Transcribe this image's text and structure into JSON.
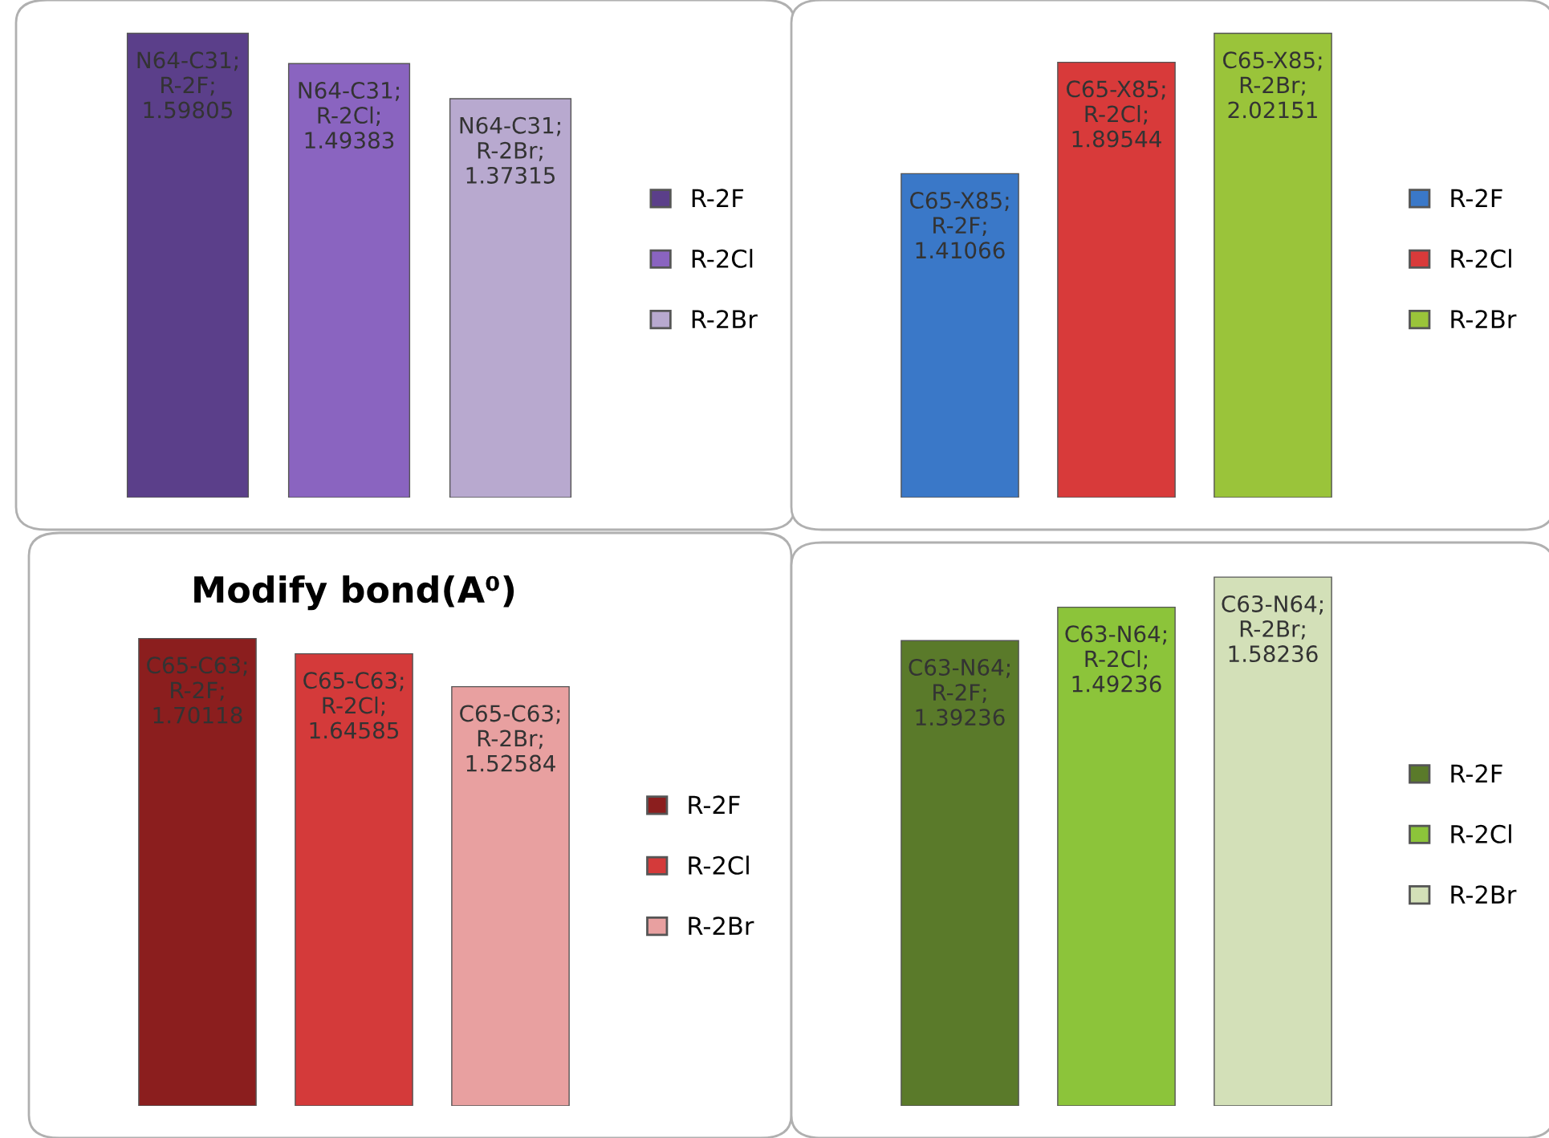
{
  "chart_data": [
    {
      "type": "bar",
      "categories": [
        null
      ],
      "tick_labels": false,
      "legend": "right",
      "grid": false,
      "series": [
        {
          "name": "R-2F",
          "color": "#5b3f8a",
          "values": [
            1.59805
          ],
          "value_labels": [
            "N64-C31; R-2F; 1.59805"
          ]
        },
        {
          "name": "R-2Cl",
          "color": "#8a64c0",
          "values": [
            1.49383
          ],
          "value_labels": [
            "N64-C31; R-2Cl; 1.49383"
          ]
        },
        {
          "name": "R-2Br",
          "color": "#b8a9cf",
          "values": [
            1.37315
          ],
          "value_labels": [
            "N64-C31; R-2Br; 1.37315"
          ]
        }
      ]
    },
    {
      "type": "bar",
      "categories": [
        null
      ],
      "tick_labels": false,
      "legend": "right",
      "grid": false,
      "series": [
        {
          "name": "R-2F",
          "color": "#3a78c8",
          "values": [
            1.41066
          ],
          "value_labels": [
            "C65-X85; R-2F; 1.41066"
          ]
        },
        {
          "name": "R-2Cl",
          "color": "#d83a3a",
          "values": [
            1.89544
          ],
          "value_labels": [
            "C65-X85; R-2Cl; 1.89544"
          ]
        },
        {
          "name": "R-2Br",
          "color": "#9ac43a",
          "values": [
            2.02151
          ],
          "value_labels": [
            "C65-X85; R-2Br; 2.02151"
          ]
        }
      ]
    },
    {
      "type": "bar",
      "title": "Modify bond(A⁰)",
      "categories": [
        null
      ],
      "tick_labels": false,
      "legend": "right",
      "grid": false,
      "series": [
        {
          "name": "R-2F",
          "color": "#8b1e1e",
          "values": [
            1.70118
          ],
          "value_labels": [
            "C65-C63; R-2F; 1.70118"
          ]
        },
        {
          "name": "R-2Cl",
          "color": "#d43a3a",
          "values": [
            1.64585
          ],
          "value_labels": [
            "C65-C63; R-2Cl; 1.64585"
          ]
        },
        {
          "name": "R-2Br",
          "color": "#e8a0a0",
          "values": [
            1.52584
          ],
          "value_labels": [
            "C65-C63; R-2Br; 1.52584"
          ]
        }
      ]
    },
    {
      "type": "bar",
      "categories": [
        null
      ],
      "tick_labels": false,
      "legend": "right",
      "grid": false,
      "series": [
        {
          "name": "R-2F",
          "color": "#5a7a2a",
          "values": [
            1.39236
          ],
          "value_labels": [
            "C63-N64; R-2F; 1.39236"
          ]
        },
        {
          "name": "R-2Cl",
          "color": "#8cc43a",
          "values": [
            1.49236
          ],
          "value_labels": [
            "C63-N64; R-2Cl; 1.49236"
          ]
        },
        {
          "name": "R-2Br",
          "color": "#d3e0b8",
          "values": [
            1.58236
          ],
          "value_labels": [
            "C63-N64; R-2Br; 1.58236"
          ]
        }
      ]
    }
  ]
}
